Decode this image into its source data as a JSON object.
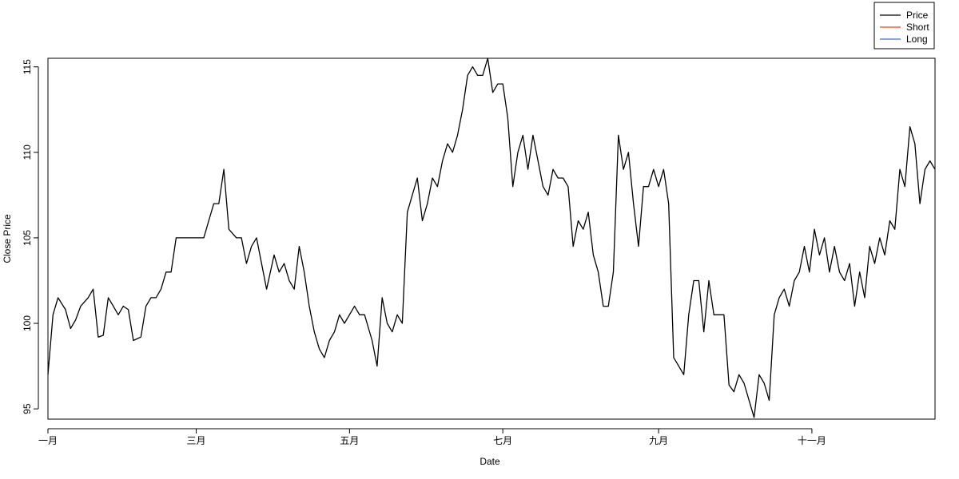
{
  "colors": {
    "price": "#000000",
    "short": "#e64b1e",
    "long": "#3f6fd0",
    "buy": "#e00000",
    "sell": "#0000c0",
    "axis": "#000000"
  },
  "chart_data": {
    "type": "line",
    "xlabel": "Date",
    "ylabel": "Close Price",
    "x_ticks": [
      {
        "label": "一月",
        "x": "2013-01-01"
      },
      {
        "label": "三月",
        "x": "2013-03-01"
      },
      {
        "label": "五月",
        "x": "2013-05-01"
      },
      {
        "label": "七月",
        "x": "2013-07-01"
      },
      {
        "label": "九月",
        "x": "2013-09-01"
      },
      {
        "label": "十一月",
        "x": "2013-11-01"
      }
    ],
    "y_ticks": [
      95,
      100,
      105,
      110,
      115
    ],
    "xlim": [
      "2013-01-01",
      "2013-12-20"
    ],
    "ylim": [
      94.4,
      115.5
    ],
    "grid": false,
    "legend_position": "top-right",
    "series": [
      {
        "name": "Price",
        "color": "#000000",
        "points": [
          [
            "2013-01-01",
            97
          ],
          [
            "2013-01-03",
            100.5
          ],
          [
            "2013-01-05",
            101.5
          ],
          [
            "2013-01-08",
            100.8
          ],
          [
            "2013-01-10",
            99.7
          ],
          [
            "2013-01-12",
            100.2
          ],
          [
            "2013-01-14",
            101
          ],
          [
            "2013-01-17",
            101.5
          ],
          [
            "2013-01-19",
            102
          ],
          [
            "2013-01-21",
            99.2
          ],
          [
            "2013-01-23",
            99.3
          ],
          [
            "2013-01-25",
            101.5
          ],
          [
            "2013-01-27",
            101
          ],
          [
            "2013-01-29",
            100.5
          ],
          [
            "2013-01-31",
            101
          ],
          [
            "2013-02-02",
            100.8
          ],
          [
            "2013-02-04",
            99
          ],
          [
            "2013-02-07",
            99.2
          ],
          [
            "2013-02-09",
            101
          ],
          [
            "2013-02-11",
            101.5
          ],
          [
            "2013-02-13",
            101.5
          ],
          [
            "2013-02-15",
            102
          ],
          [
            "2013-02-17",
            103
          ],
          [
            "2013-02-19",
            103
          ],
          [
            "2013-02-21",
            105
          ],
          [
            "2013-02-26",
            105
          ],
          [
            "2013-03-01",
            105
          ],
          [
            "2013-03-04",
            105
          ],
          [
            "2013-03-06",
            106
          ],
          [
            "2013-03-08",
            107
          ],
          [
            "2013-03-10",
            107
          ],
          [
            "2013-03-12",
            109
          ],
          [
            "2013-03-14",
            105.5
          ],
          [
            "2013-03-17",
            105
          ],
          [
            "2013-03-19",
            105
          ],
          [
            "2013-03-21",
            103.5
          ],
          [
            "2013-03-23",
            104.5
          ],
          [
            "2013-03-25",
            105
          ],
          [
            "2013-03-27",
            103.5
          ],
          [
            "2013-03-29",
            102
          ],
          [
            "2013-04-01",
            104
          ],
          [
            "2013-04-03",
            103
          ],
          [
            "2013-04-05",
            103.5
          ],
          [
            "2013-04-07",
            102.5
          ],
          [
            "2013-04-09",
            102
          ],
          [
            "2013-04-11",
            104.5
          ],
          [
            "2013-04-13",
            103
          ],
          [
            "2013-04-15",
            101
          ],
          [
            "2013-04-17",
            99.5
          ],
          [
            "2013-04-19",
            98.5
          ],
          [
            "2013-04-21",
            98
          ],
          [
            "2013-04-23",
            99
          ],
          [
            "2013-04-25",
            99.5
          ],
          [
            "2013-04-27",
            100.5
          ],
          [
            "2013-04-29",
            100
          ],
          [
            "2013-05-01",
            100.5
          ],
          [
            "2013-05-03",
            101
          ],
          [
            "2013-05-05",
            100.5
          ],
          [
            "2013-05-07",
            100.5
          ],
          [
            "2013-05-10",
            99
          ],
          [
            "2013-05-12",
            97.5
          ],
          [
            "2013-05-14",
            101.5
          ],
          [
            "2013-05-16",
            100
          ],
          [
            "2013-05-18",
            99.5
          ],
          [
            "2013-05-20",
            100.5
          ],
          [
            "2013-05-22",
            100
          ],
          [
            "2013-05-24",
            106.5
          ],
          [
            "2013-05-26",
            107.5
          ],
          [
            "2013-05-28",
            108.5
          ],
          [
            "2013-05-30",
            106
          ],
          [
            "2013-06-01",
            107
          ],
          [
            "2013-06-03",
            108.5
          ],
          [
            "2013-06-05",
            108
          ],
          [
            "2013-06-07",
            109.5
          ],
          [
            "2013-06-09",
            110.5
          ],
          [
            "2013-06-11",
            110
          ],
          [
            "2013-06-13",
            111
          ],
          [
            "2013-06-15",
            112.5
          ],
          [
            "2013-06-17",
            114.5
          ],
          [
            "2013-06-19",
            115
          ],
          [
            "2013-06-21",
            114.5
          ],
          [
            "2013-06-23",
            114.5
          ],
          [
            "2013-06-25",
            115.5
          ],
          [
            "2013-06-27",
            113.5
          ],
          [
            "2013-06-29",
            114
          ],
          [
            "2013-07-01",
            114
          ],
          [
            "2013-07-03",
            112
          ],
          [
            "2013-07-05",
            108
          ],
          [
            "2013-07-07",
            110
          ],
          [
            "2013-07-09",
            111
          ],
          [
            "2013-07-11",
            109
          ],
          [
            "2013-07-13",
            111
          ],
          [
            "2013-07-15",
            109.5
          ],
          [
            "2013-07-17",
            108
          ],
          [
            "2013-07-19",
            107.5
          ],
          [
            "2013-07-21",
            109
          ],
          [
            "2013-07-23",
            108.5
          ],
          [
            "2013-07-25",
            108.5
          ],
          [
            "2013-07-27",
            108
          ],
          [
            "2013-07-29",
            104.5
          ],
          [
            "2013-07-31",
            106
          ],
          [
            "2013-08-02",
            105.5
          ],
          [
            "2013-08-04",
            106.5
          ],
          [
            "2013-08-06",
            104
          ],
          [
            "2013-08-08",
            103
          ],
          [
            "2013-08-10",
            101
          ],
          [
            "2013-08-12",
            101
          ],
          [
            "2013-08-14",
            103
          ],
          [
            "2013-08-16",
            111
          ],
          [
            "2013-08-18",
            109
          ],
          [
            "2013-08-20",
            110
          ],
          [
            "2013-08-22",
            107
          ],
          [
            "2013-08-24",
            104.5
          ],
          [
            "2013-08-26",
            108
          ],
          [
            "2013-08-28",
            108
          ],
          [
            "2013-08-30",
            109
          ],
          [
            "2013-09-01",
            108
          ],
          [
            "2013-09-03",
            109
          ],
          [
            "2013-09-05",
            107
          ],
          [
            "2013-09-07",
            98
          ],
          [
            "2013-09-09",
            97.5
          ],
          [
            "2013-09-11",
            97
          ],
          [
            "2013-09-13",
            100.5
          ],
          [
            "2013-09-15",
            102.5
          ],
          [
            "2013-09-17",
            102.5
          ],
          [
            "2013-09-19",
            99.5
          ],
          [
            "2013-09-21",
            102.5
          ],
          [
            "2013-09-23",
            100.5
          ],
          [
            "2013-09-25",
            100.5
          ],
          [
            "2013-09-27",
            100.5
          ],
          [
            "2013-09-29",
            96.4
          ],
          [
            "2013-10-01",
            96
          ],
          [
            "2013-10-03",
            97
          ],
          [
            "2013-10-05",
            96.5
          ],
          [
            "2013-10-07",
            95.5
          ],
          [
            "2013-10-09",
            94.5
          ],
          [
            "2013-10-11",
            97
          ],
          [
            "2013-10-13",
            96.5
          ],
          [
            "2013-10-15",
            95.5
          ],
          [
            "2013-10-17",
            100.5
          ],
          [
            "2013-10-19",
            101.5
          ],
          [
            "2013-10-21",
            102
          ],
          [
            "2013-10-23",
            101
          ],
          [
            "2013-10-25",
            102.5
          ],
          [
            "2013-10-27",
            103
          ],
          [
            "2013-10-29",
            104.5
          ],
          [
            "2013-10-31",
            103
          ],
          [
            "2013-11-02",
            105.5
          ],
          [
            "2013-11-04",
            104
          ],
          [
            "2013-11-06",
            105
          ],
          [
            "2013-11-08",
            103
          ],
          [
            "2013-11-10",
            104.5
          ],
          [
            "2013-11-12",
            103
          ],
          [
            "2013-11-14",
            102.5
          ],
          [
            "2013-11-16",
            103.5
          ],
          [
            "2013-11-18",
            101
          ],
          [
            "2013-11-20",
            103
          ],
          [
            "2013-11-22",
            101.5
          ],
          [
            "2013-11-24",
            104.5
          ],
          [
            "2013-11-26",
            103.5
          ],
          [
            "2013-11-28",
            105
          ],
          [
            "2013-11-30",
            104
          ],
          [
            "2013-12-02",
            106
          ],
          [
            "2013-12-04",
            105.5
          ],
          [
            "2013-12-06",
            109
          ],
          [
            "2013-12-08",
            108
          ],
          [
            "2013-12-10",
            111.5
          ],
          [
            "2013-12-12",
            110.5
          ],
          [
            "2013-12-14",
            107
          ],
          [
            "2013-12-16",
            109
          ],
          [
            "2013-12-18",
            109.5
          ],
          [
            "2013-12-20",
            109
          ]
        ]
      },
      {
        "name": "Short",
        "color": "#e64b1e",
        "points": []
      },
      {
        "name": "Long",
        "color": "#3f6fd0",
        "points": []
      }
    ],
    "annotations": []
  }
}
